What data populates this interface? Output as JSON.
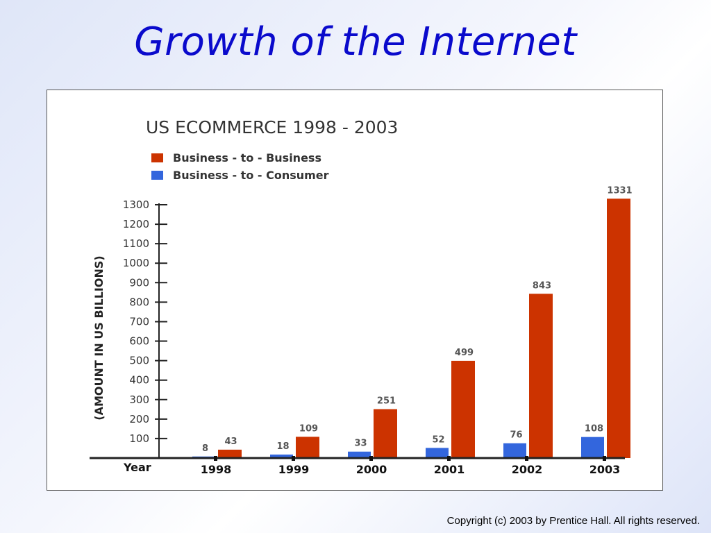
{
  "slide": {
    "title": "Growth of the Internet",
    "copyright": "Copyright (c) 2003 by Prentice Hall. All rights reserved."
  },
  "colors": {
    "b2b": "#cc3300",
    "b2c": "#3366dd",
    "title": "#0a0acc"
  },
  "chart_data": {
    "type": "bar",
    "title": "US ECOMMERCE 1998 - 2003",
    "xlabel": "Year",
    "ylabel": "(AMOUNT IN US BILLIONS)",
    "categories": [
      "1998",
      "1999",
      "2000",
      "2001",
      "2002",
      "2003"
    ],
    "series": [
      {
        "name": "Business - to - Consumer",
        "values": [
          8,
          18,
          33,
          52,
          76,
          108
        ]
      },
      {
        "name": "Business - to - Business",
        "values": [
          43,
          109,
          251,
          499,
          843,
          1331
        ]
      }
    ],
    "yticks": [
      100,
      200,
      300,
      400,
      500,
      600,
      700,
      800,
      900,
      1000,
      1100,
      1200,
      1300
    ],
    "ylim": [
      0,
      1300
    ],
    "legend": [
      {
        "name": "Business - to - Business",
        "color": "#cc3300"
      },
      {
        "name": "Business - to - Consumer",
        "color": "#3366dd"
      }
    ],
    "legend_position": "top-left",
    "grid": false
  }
}
